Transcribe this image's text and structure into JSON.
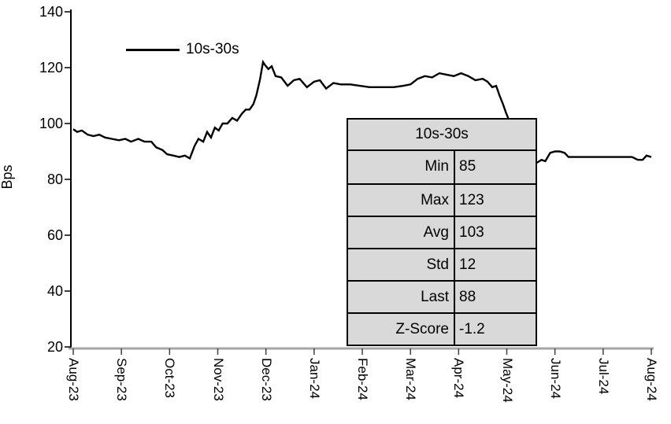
{
  "chart_data": {
    "type": "line",
    "title": "",
    "xlabel": "",
    "ylabel": "Bps",
    "ylim": [
      20,
      140
    ],
    "grid": false,
    "legend_position": "top-left",
    "legend_label": "10s-30s",
    "line_color": "#000000",
    "axis_color": "#a6a6a6",
    "y_ticks": [
      140,
      120,
      100,
      80,
      60,
      40,
      20
    ],
    "x_tick_labels": [
      "Aug-23",
      "Sep-23",
      "Oct-23",
      "Nov-23",
      "Dec-23",
      "Jan-24",
      "Feb-24",
      "Mar-24",
      "Apr-24",
      "May-24",
      "Jun-24",
      "Jul-24",
      "Aug-24"
    ],
    "series": [
      {
        "name": "10s-30s",
        "points": [
          [
            0.0,
            98
          ],
          [
            0.08,
            97
          ],
          [
            0.18,
            97.5
          ],
          [
            0.3,
            96
          ],
          [
            0.42,
            95.5
          ],
          [
            0.54,
            96
          ],
          [
            0.66,
            95
          ],
          [
            0.8,
            94.5
          ],
          [
            0.95,
            94
          ],
          [
            1.08,
            94.5
          ],
          [
            1.2,
            93.5
          ],
          [
            1.35,
            94.5
          ],
          [
            1.48,
            93.5
          ],
          [
            1.62,
            93.5
          ],
          [
            1.72,
            91.5
          ],
          [
            1.85,
            90.5
          ],
          [
            1.95,
            89
          ],
          [
            2.08,
            88.5
          ],
          [
            2.2,
            88
          ],
          [
            2.32,
            88.5
          ],
          [
            2.42,
            87.5
          ],
          [
            2.52,
            92
          ],
          [
            2.6,
            94.5
          ],
          [
            2.7,
            93.5
          ],
          [
            2.78,
            97
          ],
          [
            2.86,
            95
          ],
          [
            2.94,
            98.5
          ],
          [
            3.02,
            97.5
          ],
          [
            3.1,
            100
          ],
          [
            3.2,
            100
          ],
          [
            3.3,
            102
          ],
          [
            3.4,
            101
          ],
          [
            3.5,
            103.5
          ],
          [
            3.58,
            105
          ],
          [
            3.66,
            105
          ],
          [
            3.74,
            107
          ],
          [
            3.8,
            110
          ],
          [
            3.84,
            113
          ],
          [
            3.88,
            116
          ],
          [
            3.9,
            118
          ],
          [
            3.94,
            122
          ],
          [
            3.98,
            121
          ],
          [
            4.05,
            119.5
          ],
          [
            4.12,
            120.5
          ],
          [
            4.2,
            117
          ],
          [
            4.32,
            116.5
          ],
          [
            4.45,
            113.5
          ],
          [
            4.58,
            115.5
          ],
          [
            4.7,
            116
          ],
          [
            4.85,
            113
          ],
          [
            5.0,
            115
          ],
          [
            5.12,
            115.5
          ],
          [
            5.25,
            112.5
          ],
          [
            5.4,
            114.5
          ],
          [
            5.55,
            114
          ],
          [
            5.75,
            114
          ],
          [
            5.95,
            113.5
          ],
          [
            6.15,
            113
          ],
          [
            6.4,
            113
          ],
          [
            6.65,
            113
          ],
          [
            6.85,
            113.5
          ],
          [
            7.0,
            114
          ],
          [
            7.15,
            116
          ],
          [
            7.3,
            117
          ],
          [
            7.45,
            116.5
          ],
          [
            7.6,
            118
          ],
          [
            7.75,
            117.5
          ],
          [
            7.9,
            117
          ],
          [
            8.05,
            118
          ],
          [
            8.2,
            117
          ],
          [
            8.35,
            115.5
          ],
          [
            8.5,
            116
          ],
          [
            8.6,
            115
          ],
          [
            8.7,
            113
          ],
          [
            8.78,
            113.5
          ],
          [
            8.85,
            110
          ],
          [
            8.92,
            107
          ],
          [
            8.98,
            104
          ],
          [
            9.05,
            101
          ],
          [
            9.15,
            97
          ],
          [
            9.3,
            91
          ],
          [
            9.45,
            85
          ],
          [
            9.55,
            85.5
          ],
          [
            9.63,
            86
          ],
          [
            9.72,
            87
          ],
          [
            9.8,
            86.5
          ],
          [
            9.9,
            89.5
          ],
          [
            10.0,
            90
          ],
          [
            10.1,
            90
          ],
          [
            10.2,
            89.5
          ],
          [
            10.28,
            88
          ],
          [
            10.45,
            88
          ],
          [
            10.65,
            88
          ],
          [
            10.85,
            88
          ],
          [
            11.05,
            88
          ],
          [
            11.25,
            88
          ],
          [
            11.45,
            88
          ],
          [
            11.6,
            88
          ],
          [
            11.72,
            87
          ],
          [
            11.82,
            87
          ],
          [
            11.9,
            88.5
          ],
          [
            12.0,
            88
          ]
        ]
      }
    ]
  },
  "stats_table": {
    "header": "10s-30s",
    "bg_color": "#d9d9d9",
    "rows": [
      {
        "label": "Min",
        "value": "85"
      },
      {
        "label": "Max",
        "value": "123"
      },
      {
        "label": "Avg",
        "value": "103"
      },
      {
        "label": "Std",
        "value": "12"
      },
      {
        "label": "Last",
        "value": "88"
      },
      {
        "label": "Z-Score",
        "value": "-1.2"
      }
    ]
  }
}
